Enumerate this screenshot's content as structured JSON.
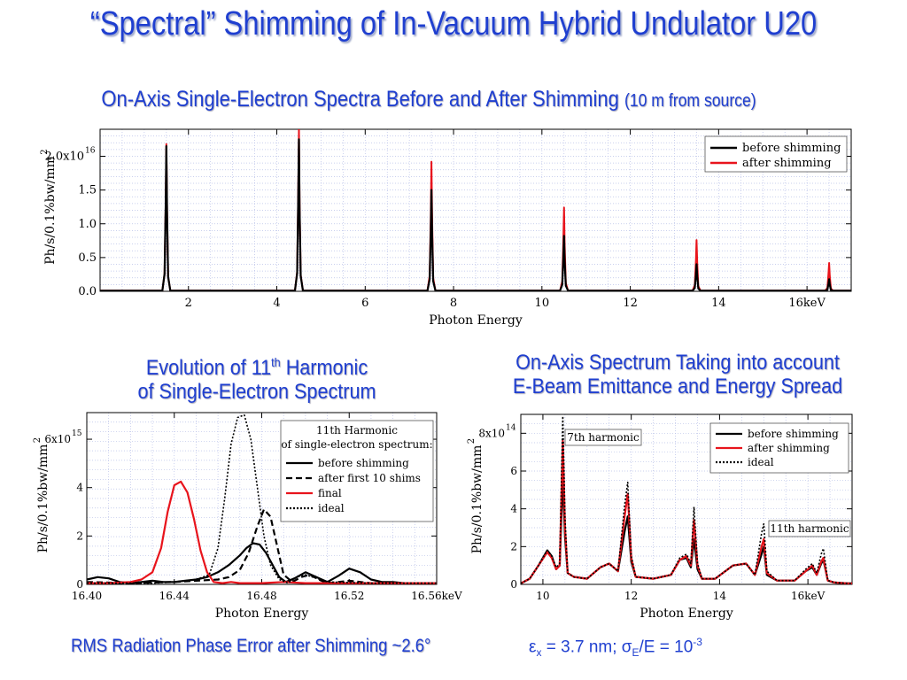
{
  "header": {
    "title": "“Spectral” Shimming of In-Vacuum Hybrid Undulator U20",
    "subtitle_main": "On-Axis Single-Electron Spectra Before and After Shimming",
    "subtitle_main_note": "(10 m from source)",
    "subtitle_left_line1": "Evolution of 11",
    "subtitle_left_sup": "th",
    "subtitle_left_line1_end": " Harmonic",
    "subtitle_left_line2": "of Single-Electron Spectrum",
    "subtitle_right_line1": "On-Axis Spectrum Taking into account",
    "subtitle_right_line2": "E-Beam Emittance and Energy Spread"
  },
  "footer": {
    "phase_error": "RMS Radiation Phase Error after Shimming ~2.6°",
    "emittance_eps": "ε",
    "emittance_x": "x",
    "emittance_val": " = 3.7 nm; ",
    "emittance_sigma": "σ",
    "emittance_E": "E",
    "emittance_rest": "/E = 10",
    "emittance_exp": "-3"
  },
  "colors": {
    "accent": "#1f3fd0",
    "before": "#000000",
    "after": "#e8141c",
    "grid": "#b8c0e8"
  },
  "chart_data": [
    {
      "id": "top",
      "type": "line",
      "xlabel": "Photon Energy",
      "ylabel": "Ph/s/0.1%bw/mm",
      "ylabel_sup": "2",
      "xlim": [
        0,
        17
      ],
      "ylim": [
        0,
        2.4e+16
      ],
      "x_ticks": [
        2,
        4,
        6,
        8,
        10,
        12,
        14,
        16
      ],
      "x_tick_labels": [
        "2",
        "4",
        "6",
        "8",
        "10",
        "12",
        "14",
        "16keV"
      ],
      "y_ticks": [
        0,
        5000000000000000.0,
        1e+16,
        1.5e+16,
        2e+16
      ],
      "y_tick_labels": [
        "0.0",
        "0.5",
        "1.0",
        "1.5",
        "2.0x10"
      ],
      "y_tick_sup": "16",
      "legend": [
        "before shimming",
        "after shimming"
      ],
      "legend_position": "top-right",
      "series": [
        {
          "name": "before shimming",
          "color": "#000000",
          "peaks": [
            [
              1.5,
              2.15e+16
            ],
            [
              4.5,
              2.25e+16
            ],
            [
              7.5,
              1.5e+16
            ],
            [
              10.5,
              8200000000000000.0
            ],
            [
              13.5,
              4000000000000000.0
            ],
            [
              16.5,
              1800000000000000.0
            ]
          ]
        },
        {
          "name": "after shimming",
          "color": "#e8141c",
          "peaks": [
            [
              1.5,
              2.18e+16
            ],
            [
              4.5,
              2.4e+16
            ],
            [
              7.5,
              1.92e+16
            ],
            [
              10.5,
              1.24e+16
            ],
            [
              13.5,
              7600000000000000.0
            ],
            [
              16.5,
              4200000000000000.0
            ]
          ]
        }
      ]
    },
    {
      "id": "left",
      "type": "line",
      "xlabel": "Photon Energy",
      "ylabel": "Ph/s/0.1%bw/mm",
      "ylabel_sup": "2",
      "xlim": [
        16.4,
        16.56
      ],
      "ylim": [
        0,
        7100000000000000.0
      ],
      "x_ticks": [
        16.4,
        16.44,
        16.48,
        16.52,
        16.56
      ],
      "x_tick_labels": [
        "16.40",
        "16.44",
        "16.48",
        "16.52",
        "16.56keV"
      ],
      "y_ticks": [
        0,
        2000000000000000.0,
        4000000000000000.0,
        6000000000000000.0
      ],
      "y_tick_labels": [
        "0",
        "2",
        "4",
        "6x10"
      ],
      "y_tick_sup": "15",
      "legend_title_1": "11th Harmonic",
      "legend_title_2": "of single-electron spectrum:",
      "legend": [
        "before shimming",
        "after first 10 shims",
        "final",
        "ideal"
      ],
      "legend_position": "top-right",
      "series": [
        {
          "name": "before shimming",
          "color": "#000000",
          "dash": "none",
          "x": [
            16.4,
            16.405,
            16.41,
            16.415,
            16.42,
            16.425,
            16.43,
            16.435,
            16.44,
            16.445,
            16.45,
            16.455,
            16.46,
            16.465,
            16.47,
            16.473,
            16.476,
            16.479,
            16.482,
            16.485,
            16.488,
            16.491,
            16.495,
            16.5,
            16.505,
            16.51,
            16.515,
            16.52,
            16.525,
            16.53,
            16.535,
            16.54,
            16.545,
            16.55,
            16.555,
            16.56
          ],
          "y": [
            200000000000000.0,
            300000000000000.0,
            250000000000000.0,
            100000000000000.0,
            50000000000000.0,
            100000000000000.0,
            150000000000000.0,
            100000000000000.0,
            100000000000000.0,
            150000000000000.0,
            200000000000000.0,
            300000000000000.0,
            500000000000000.0,
            800000000000000.0,
            1200000000000000.0,
            1500000000000000.0,
            1700000000000000.0,
            1650000000000000.0,
            1300000000000000.0,
            800000000000000.0,
            300000000000000.0,
            100000000000000.0,
            250000000000000.0,
            500000000000000.0,
            300000000000000.0,
            100000000000000.0,
            350000000000000.0,
            650000000000000.0,
            500000000000000.0,
            200000000000000.0,
            100000000000000.0,
            100000000000000.0,
            50000000000000.0,
            50000000000000.0,
            50000000000000.0,
            50000000000000.0
          ]
        },
        {
          "name": "after first 10 shims",
          "color": "#000000",
          "dash": "7,4",
          "x": [
            16.4,
            16.42,
            16.44,
            16.45,
            16.46,
            16.465,
            16.47,
            16.474,
            16.478,
            16.481,
            16.484,
            16.487,
            16.49,
            16.494,
            16.498,
            16.502,
            16.506,
            16.51,
            16.52,
            16.53,
            16.545,
            16.56
          ],
          "y": [
            100000000000000.0,
            50000000000000.0,
            100000000000000.0,
            150000000000000.0,
            200000000000000.0,
            300000000000000.0,
            600000000000000.0,
            1300000000000000.0,
            2400000000000000.0,
            3100000000000000.0,
            2800000000000000.0,
            1600000000000000.0,
            400000000000000.0,
            100000000000000.0,
            300000000000000.0,
            400000000000000.0,
            200000000000000.0,
            50000000000000.0,
            150000000000000.0,
            50000000000000.0,
            50000000000000.0,
            50000000000000.0
          ]
        },
        {
          "name": "final",
          "color": "#e8141c",
          "dash": "none",
          "x": [
            16.4,
            16.41,
            16.42,
            16.425,
            16.43,
            16.434,
            16.437,
            16.44,
            16.443,
            16.446,
            16.449,
            16.452,
            16.455,
            16.458,
            16.462,
            16.466,
            16.47,
            16.48,
            16.49,
            16.5,
            16.51,
            16.52,
            16.54,
            16.56
          ],
          "y": [
            50000000000000.0,
            50000000000000.0,
            100000000000000.0,
            200000000000000.0,
            500000000000000.0,
            1500000000000000.0,
            3000000000000000.0,
            4100000000000000.0,
            4250000000000000.0,
            3800000000000000.0,
            2700000000000000.0,
            1400000000000000.0,
            500000000000000.0,
            100000000000000.0,
            50000000000000.0,
            100000000000000.0,
            50000000000000.0,
            50000000000000.0,
            100000000000000.0,
            50000000000000.0,
            50000000000000.0,
            50000000000000.0,
            50000000000000.0,
            50000000000000.0
          ]
        },
        {
          "name": "ideal",
          "color": "#000000",
          "dash": "2,2",
          "x": [
            16.4,
            16.43,
            16.44,
            16.45,
            16.456,
            16.46,
            16.463,
            16.466,
            16.469,
            16.472,
            16.475,
            16.478,
            16.481,
            16.484,
            16.488,
            16.492,
            16.496,
            16.5,
            16.51,
            16.53,
            16.56
          ],
          "y": [
            50000000000000.0,
            50000000000000.0,
            100000000000000.0,
            200000000000000.0,
            400000000000000.0,
            1500000000000000.0,
            3500000000000000.0,
            5800000000000000.0,
            6900000000000000.0,
            7000000000000000.0,
            6000000000000000.0,
            4000000000000000.0,
            2000000000000000.0,
            800000000000000.0,
            200000000000000.0,
            50000000000000.0,
            300000000000000.0,
            400000000000000.0,
            100000000000000.0,
            50000000000000.0,
            50000000000000.0
          ]
        }
      ]
    },
    {
      "id": "right",
      "type": "line",
      "xlabel": "Photon Energy",
      "ylabel": "Ph/s/0.1%bw/mm",
      "ylabel_sup": "2",
      "xlim": [
        9.5,
        17.0
      ],
      "ylim": [
        0,
        900000000000000.0
      ],
      "x_ticks": [
        10,
        12,
        14,
        16
      ],
      "x_tick_labels": [
        "10",
        "12",
        "14",
        "16keV"
      ],
      "y_ticks": [
        0,
        200000000000000.0,
        400000000000000.0,
        600000000000000.0,
        800000000000000.0
      ],
      "y_tick_labels": [
        "0",
        "2",
        "4",
        "6",
        "8x10"
      ],
      "y_tick_sup": "14",
      "annotations": [
        "7th harmonic",
        "11th harmonic"
      ],
      "legend": [
        "before shimming",
        "after shimming",
        "ideal"
      ],
      "legend_position": "top-right",
      "series": [
        {
          "name": "before shimming",
          "color": "#000000",
          "dash": "none",
          "x": [
            9.5,
            9.7,
            9.9,
            10.1,
            10.2,
            10.3,
            10.38,
            10.45,
            10.5,
            10.56,
            10.7,
            11.0,
            11.3,
            11.5,
            11.7,
            11.85,
            11.92,
            12.0,
            12.1,
            12.5,
            12.9,
            13.1,
            13.25,
            13.35,
            13.42,
            13.5,
            13.6,
            13.9,
            14.3,
            14.6,
            14.8,
            14.95,
            15.0,
            15.07,
            15.3,
            15.7,
            15.95,
            16.1,
            16.2,
            16.3,
            16.35,
            16.45,
            16.6,
            16.9,
            17.0
          ],
          "y": [
            5000000000000.0,
            30000000000000.0,
            100000000000000.0,
            180000000000000.0,
            150000000000000.0,
            80000000000000.0,
            100000000000000.0,
            560000000000000.0,
            250000000000000.0,
            60000000000000.0,
            40000000000000.0,
            30000000000000.0,
            90000000000000.0,
            110000000000000.0,
            70000000000000.0,
            280000000000000.0,
            360000000000000.0,
            120000000000000.0,
            40000000000000.0,
            30000000000000.0,
            50000000000000.0,
            130000000000000.0,
            140000000000000.0,
            90000000000000.0,
            240000000000000.0,
            80000000000000.0,
            30000000000000.0,
            30000000000000.0,
            100000000000000.0,
            110000000000000.0,
            50000000000000.0,
            160000000000000.0,
            200000000000000.0,
            50000000000000.0,
            20000000000000.0,
            20000000000000.0,
            70000000000000.0,
            90000000000000.0,
            50000000000000.0,
            110000000000000.0,
            130000000000000.0,
            20000000000000.0,
            10000000000000.0,
            5000000000000.0,
            5000000000000.0
          ]
        },
        {
          "name": "after shimming",
          "color": "#e8141c",
          "dash": "none",
          "x": [
            9.5,
            9.7,
            9.9,
            10.1,
            10.2,
            10.3,
            10.38,
            10.45,
            10.5,
            10.56,
            10.7,
            11.0,
            11.3,
            11.5,
            11.7,
            11.85,
            11.92,
            12.0,
            12.1,
            12.5,
            12.9,
            13.1,
            13.25,
            13.35,
            13.42,
            13.5,
            13.6,
            13.9,
            14.3,
            14.6,
            14.8,
            14.95,
            15.0,
            15.07,
            15.3,
            15.7,
            15.95,
            16.1,
            16.2,
            16.3,
            16.35,
            16.45,
            16.6,
            16.9,
            17.0
          ],
          "y": [
            5000000000000.0,
            30000000000000.0,
            100000000000000.0,
            170000000000000.0,
            140000000000000.0,
            80000000000000.0,
            100000000000000.0,
            760000000000000.0,
            300000000000000.0,
            60000000000000.0,
            40000000000000.0,
            30000000000000.0,
            90000000000000.0,
            110000000000000.0,
            70000000000000.0,
            360000000000000.0,
            480000000000000.0,
            140000000000000.0,
            40000000000000.0,
            30000000000000.0,
            50000000000000.0,
            130000000000000.0,
            150000000000000.0,
            100000000000000.0,
            340000000000000.0,
            100000000000000.0,
            30000000000000.0,
            30000000000000.0,
            100000000000000.0,
            110000000000000.0,
            50000000000000.0,
            200000000000000.0,
            240000000000000.0,
            60000000000000.0,
            20000000000000.0,
            20000000000000.0,
            70000000000000.0,
            100000000000000.0,
            50000000000000.0,
            120000000000000.0,
            140000000000000.0,
            20000000000000.0,
            10000000000000.0,
            5000000000000.0,
            5000000000000.0
          ]
        },
        {
          "name": "ideal",
          "color": "#000000",
          "dash": "2,2",
          "x": [
            9.5,
            9.7,
            9.9,
            10.1,
            10.2,
            10.3,
            10.38,
            10.45,
            10.5,
            10.56,
            10.7,
            11.0,
            11.3,
            11.5,
            11.7,
            11.85,
            11.92,
            12.0,
            12.1,
            12.5,
            12.9,
            13.1,
            13.25,
            13.35,
            13.42,
            13.5,
            13.6,
            13.9,
            14.3,
            14.6,
            14.8,
            14.95,
            15.0,
            15.07,
            15.3,
            15.7,
            15.95,
            16.1,
            16.2,
            16.3,
            16.35,
            16.45,
            16.6,
            16.9,
            17.0
          ],
          "y": [
            5000000000000.0,
            30000000000000.0,
            100000000000000.0,
            180000000000000.0,
            150000000000000.0,
            90000000000000.0,
            110000000000000.0,
            890000000000000.0,
            350000000000000.0,
            60000000000000.0,
            40000000000000.0,
            30000000000000.0,
            90000000000000.0,
            110000000000000.0,
            70000000000000.0,
            420000000000000.0,
            540000000000000.0,
            150000000000000.0,
            40000000000000.0,
            30000000000000.0,
            50000000000000.0,
            140000000000000.0,
            160000000000000.0,
            110000000000000.0,
            410000000000000.0,
            110000000000000.0,
            30000000000000.0,
            30000000000000.0,
            100000000000000.0,
            110000000000000.0,
            50000000000000.0,
            270000000000000.0,
            320000000000000.0,
            70000000000000.0,
            20000000000000.0,
            20000000000000.0,
            80000000000000.0,
            110000000000000.0,
            60000000000000.0,
            160000000000000.0,
            190000000000000.0,
            20000000000000.0,
            10000000000000.0,
            5000000000000.0,
            5000000000000.0
          ]
        }
      ]
    }
  ]
}
